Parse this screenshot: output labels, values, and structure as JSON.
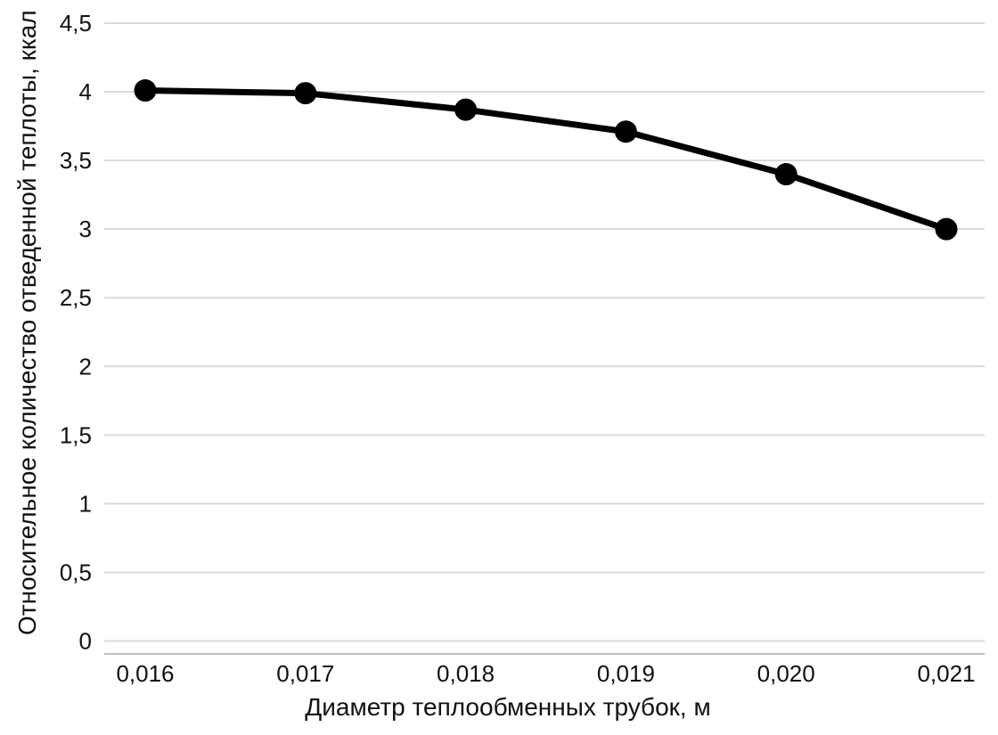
{
  "chart_data": {
    "type": "line",
    "title": "",
    "xlabel": "Диаметр теплообменных трубок, м",
    "ylabel": "Относительное количество отведенной теплоты, ккал",
    "categories": [
      "0,016",
      "0,017",
      "0,018",
      "0,019",
      "0,020",
      "0,021"
    ],
    "x_values": [
      0.016,
      0.017,
      0.018,
      0.019,
      0.02,
      0.021
    ],
    "values": [
      4.01,
      3.99,
      3.87,
      3.71,
      3.4,
      3.0
    ],
    "ylim": [
      0,
      4.5
    ],
    "ytick_step": 0.5,
    "ytick_labels": [
      "0",
      "0,5",
      "1",
      "1,5",
      "2",
      "2,5",
      "3",
      "3,5",
      "4",
      "4,5"
    ],
    "grid": "horizontal",
    "legend": "none",
    "marker": "circle"
  },
  "colors": {
    "background": "#ffffff",
    "text": "#111111",
    "gridline": "#d9d9d9",
    "axis_line": "#bfbfbf",
    "series": "#000000"
  }
}
